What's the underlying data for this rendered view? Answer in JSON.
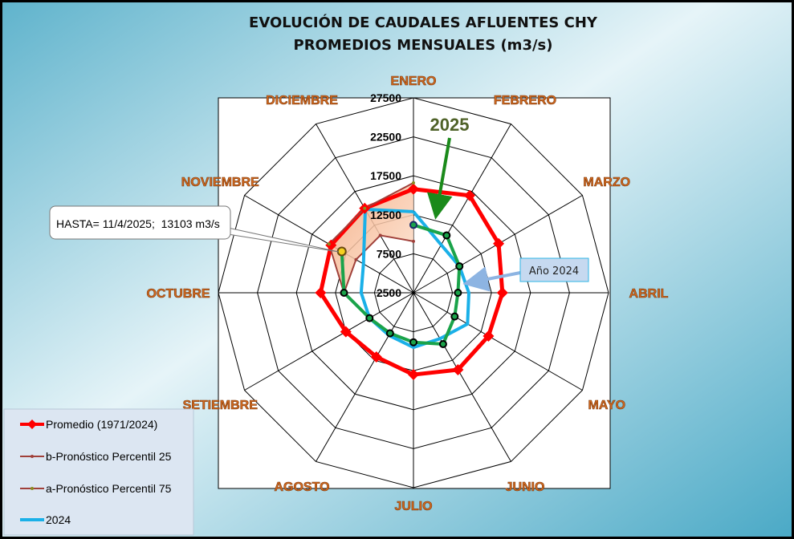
{
  "title_line1": "EVOLUCIÓN DE CAUDALES AFLUENTES CHY",
  "title_line2": "PROMEDIOS MENSUALES (m3/s)",
  "annotations": {
    "year_2025": "2025",
    "year_2024_box": "Año 2024",
    "hasta_callout": "HASTA= 11/4/2025;  13103 m3/s"
  },
  "colors": {
    "promedio": "#ff0000",
    "p25": "#a0403a",
    "p75": "#a0403a",
    "band": "#f9c9a8",
    "y2024": "#1ab0e8",
    "y2025": "#1aa34a",
    "month_label": "#d2691e",
    "arrow_2025": "#1a8a1a"
  },
  "chart_data": {
    "type": "radar",
    "title": "EVOLUCIÓN DE CAUDALES AFLUENTES CHY PROMEDIOS MENSUALES (m3/s)",
    "categories": [
      "ENERO",
      "FEBRERO",
      "MARZO",
      "ABRIL",
      "MAYO",
      "JUNIO",
      "JULIO",
      "AGOSTO",
      "SETIEMBRE",
      "OCTUBRE",
      "NOVIEMBRE",
      "DICIEMBRE"
    ],
    "rlim": [
      2500,
      27500
    ],
    "ticks": [
      "2500",
      "7500",
      "12500",
      "17500",
      "22500",
      "27500"
    ],
    "grid": true,
    "legend": "bottom-left",
    "series": [
      {
        "name": "Promedio (1971/2024)",
        "values": [
          15800,
          16900,
          15100,
          13900,
          13600,
          13900,
          13000,
          12000,
          12500,
          14400,
          14700,
          15000
        ]
      },
      {
        "name": "b-Pronóstico Percentil 25",
        "values": [
          9100,
          null,
          null,
          null,
          null,
          null,
          null,
          null,
          null,
          11400,
          11000,
          11000
        ]
      },
      {
        "name": "a-Pronóstico Percentil 75",
        "values": [
          16600,
          null,
          null,
          null,
          null,
          null,
          null,
          null,
          null,
          11400,
          15000,
          15000
        ]
      },
      {
        "name": "2024",
        "values": [
          12900,
          9600,
          9300,
          9600,
          10500,
          9300,
          9500,
          8800,
          9000,
          9200,
          9900,
          14850
        ]
      },
      {
        "values": [
          11200,
          11000,
          9300,
          8200,
          8600,
          10100,
          8850,
          8500,
          9000,
          11400,
          13103,
          null
        ]
      }
    ]
  }
}
